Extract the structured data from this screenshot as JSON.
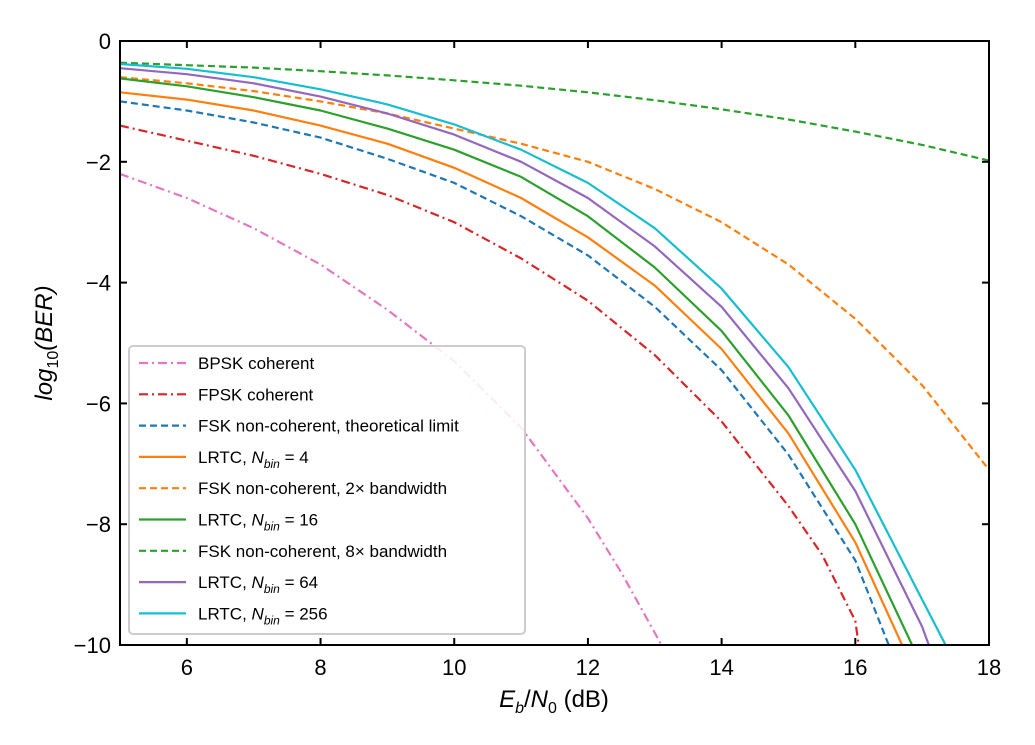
{
  "chart_data": {
    "type": "line",
    "title": "",
    "xlabel": {
      "var": "E",
      "var_sub": "b",
      "sep": "/",
      "var2": "N",
      "var2_sub": "0",
      "unit": " (dB)"
    },
    "ylabel": {
      "func": "log",
      "func_sub": "10",
      "arg": "(BER)"
    },
    "xlim": [
      5,
      18
    ],
    "ylim": [
      -10,
      0
    ],
    "xticks": [
      6,
      8,
      10,
      12,
      14,
      16,
      18
    ],
    "xtick_labels": [
      "6",
      "8",
      "10",
      "12",
      "14",
      "16",
      "18"
    ],
    "yticks": [
      -10,
      -8,
      -6,
      -4,
      -2,
      0
    ],
    "ytick_labels": [
      "−10",
      "−8",
      "−6",
      "−4",
      "−2",
      "0"
    ],
    "grid": false,
    "legend_position": "lower-left",
    "series": [
      {
        "name": "BPSK coherent",
        "color": "#e377c2",
        "style": "dashdot",
        "x": [
          5,
          6,
          7,
          8,
          9,
          10,
          11,
          12,
          12.5,
          13,
          13.1
        ],
        "y": [
          -2.2,
          -2.6,
          -3.1,
          -3.7,
          -4.45,
          -5.3,
          -6.4,
          -7.9,
          -8.8,
          -9.8,
          -10
        ]
      },
      {
        "name": "FPSK coherent",
        "color": "#d62728",
        "style": "dashdot",
        "x": [
          5,
          6,
          7,
          8,
          9,
          10,
          11,
          12,
          13,
          14,
          15,
          15.5,
          16,
          16.05
        ],
        "y": [
          -1.4,
          -1.65,
          -1.9,
          -2.2,
          -2.55,
          -3.0,
          -3.6,
          -4.3,
          -5.2,
          -6.3,
          -7.7,
          -8.5,
          -9.6,
          -10
        ]
      },
      {
        "name": "FSK non-coherent, theoretical limit",
        "color": "#1f77b4",
        "style": "dashed",
        "x": [
          5,
          6,
          7,
          8,
          9,
          10,
          11,
          12,
          13,
          14,
          15,
          16,
          16.5
        ],
        "y": [
          -1.0,
          -1.15,
          -1.35,
          -1.6,
          -1.95,
          -2.35,
          -2.9,
          -3.55,
          -4.4,
          -5.45,
          -6.85,
          -8.6,
          -10
        ]
      },
      {
        "name": "LRTC, N_bin = 4",
        "legend_prefix": "LRTC, ",
        "legend_var": "N",
        "legend_sub": "bin",
        "legend_suffix": " = 4",
        "color": "#ff7f0e",
        "style": "solid",
        "x": [
          5,
          6,
          7,
          8,
          9,
          10,
          11,
          12,
          13,
          14,
          15,
          16,
          16.7
        ],
        "y": [
          -0.85,
          -0.97,
          -1.15,
          -1.4,
          -1.7,
          -2.1,
          -2.6,
          -3.25,
          -4.05,
          -5.1,
          -6.5,
          -8.3,
          -10
        ]
      },
      {
        "name": "FSK non-coherent, 2× bandwidth",
        "color": "#ff7f0e",
        "style": "dashed",
        "x": [
          5,
          6,
          7,
          8,
          9,
          10,
          11,
          12,
          13,
          14,
          15,
          16,
          17,
          18
        ],
        "y": [
          -0.6,
          -0.7,
          -0.83,
          -1.0,
          -1.2,
          -1.45,
          -1.7,
          -2.0,
          -2.45,
          -3.0,
          -3.7,
          -4.6,
          -5.7,
          -7.1
        ]
      },
      {
        "name": "LRTC, N_bin = 16",
        "legend_prefix": "LRTC, ",
        "legend_var": "N",
        "legend_sub": "bin",
        "legend_suffix": " = 16",
        "color": "#2ca02c",
        "style": "solid",
        "x": [
          5,
          6,
          7,
          8,
          9,
          10,
          11,
          12,
          13,
          14,
          15,
          16,
          16.85
        ],
        "y": [
          -0.62,
          -0.75,
          -0.93,
          -1.15,
          -1.45,
          -1.8,
          -2.25,
          -2.9,
          -3.75,
          -4.8,
          -6.2,
          -8.0,
          -10
        ]
      },
      {
        "name": "FSK non-coherent, 8× bandwidth",
        "color": "#2ca02c",
        "style": "dashed",
        "x": [
          5,
          6,
          7,
          8,
          9,
          10,
          11,
          12,
          13,
          14,
          15,
          16,
          17,
          18
        ],
        "y": [
          -0.36,
          -0.4,
          -0.44,
          -0.5,
          -0.57,
          -0.65,
          -0.74,
          -0.85,
          -0.98,
          -1.13,
          -1.3,
          -1.5,
          -1.72,
          -1.98
        ]
      },
      {
        "name": "LRTC, N_bin = 64",
        "legend_prefix": "LRTC, ",
        "legend_var": "N",
        "legend_sub": "bin",
        "legend_suffix": " = 64",
        "color": "#9467bd",
        "style": "solid",
        "x": [
          5,
          6,
          7,
          8,
          9,
          10,
          11,
          12,
          13,
          14,
          15,
          16,
          17,
          17.1
        ],
        "y": [
          -0.45,
          -0.55,
          -0.7,
          -0.92,
          -1.2,
          -1.55,
          -2.0,
          -2.6,
          -3.4,
          -4.4,
          -5.75,
          -7.45,
          -9.7,
          -10
        ]
      },
      {
        "name": "LRTC, N_bin = 256",
        "legend_prefix": "LRTC, ",
        "legend_var": "N",
        "legend_sub": "bin",
        "legend_suffix": " = 256",
        "color": "#17becf",
        "style": "solid",
        "x": [
          5,
          6,
          7,
          8,
          9,
          10,
          11,
          12,
          13,
          14,
          15,
          16,
          17,
          17.35
        ],
        "y": [
          -0.38,
          -0.46,
          -0.6,
          -0.8,
          -1.05,
          -1.38,
          -1.8,
          -2.35,
          -3.1,
          -4.1,
          -5.4,
          -7.1,
          -9.25,
          -10
        ]
      }
    ]
  }
}
